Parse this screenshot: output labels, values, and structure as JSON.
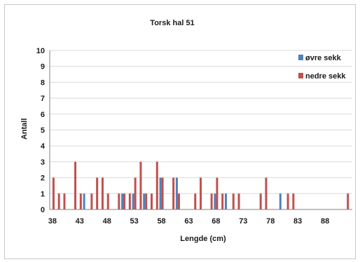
{
  "chart_data": {
    "type": "bar",
    "title": "Torsk hal 51",
    "xlabel": "Lengde (cm)",
    "ylabel": "Antall",
    "xlim": [
      37.5,
      93
    ],
    "ylim": [
      0,
      10
    ],
    "x_ticks": [
      38,
      43,
      48,
      53,
      58,
      63,
      68,
      73,
      78,
      83,
      88
    ],
    "y_ticks": [
      0,
      1,
      2,
      3,
      4,
      5,
      6,
      7,
      8,
      9,
      10
    ],
    "grid": "horizontal",
    "legend_position": "top-right",
    "series": [
      {
        "name": "øvre sekk",
        "color": "#4f81bd",
        "points": [
          {
            "x": 44,
            "y": 1
          },
          {
            "x": 51,
            "y": 1
          },
          {
            "x": 53,
            "y": 1
          },
          {
            "x": 55,
            "y": 1
          },
          {
            "x": 58,
            "y": 2
          },
          {
            "x": 61,
            "y": 2
          },
          {
            "x": 68,
            "y": 1
          },
          {
            "x": 70,
            "y": 1
          },
          {
            "x": 80,
            "y": 1
          }
        ]
      },
      {
        "name": "nedre sekk",
        "color": "#c0504d",
        "points": [
          {
            "x": 38,
            "y": 2
          },
          {
            "x": 39,
            "y": 1
          },
          {
            "x": 40,
            "y": 1
          },
          {
            "x": 42,
            "y": 3
          },
          {
            "x": 43,
            "y": 1
          },
          {
            "x": 45,
            "y": 1
          },
          {
            "x": 46,
            "y": 2
          },
          {
            "x": 47,
            "y": 2
          },
          {
            "x": 48,
            "y": 1
          },
          {
            "x": 50,
            "y": 1
          },
          {
            "x": 51,
            "y": 1
          },
          {
            "x": 52,
            "y": 1
          },
          {
            "x": 53,
            "y": 2
          },
          {
            "x": 54,
            "y": 3
          },
          {
            "x": 55,
            "y": 1
          },
          {
            "x": 56,
            "y": 1
          },
          {
            "x": 57,
            "y": 3
          },
          {
            "x": 58,
            "y": 2
          },
          {
            "x": 60,
            "y": 2
          },
          {
            "x": 61,
            "y": 1
          },
          {
            "x": 64,
            "y": 1
          },
          {
            "x": 65,
            "y": 2
          },
          {
            "x": 67,
            "y": 1
          },
          {
            "x": 68,
            "y": 2
          },
          {
            "x": 69,
            "y": 1
          },
          {
            "x": 71,
            "y": 1
          },
          {
            "x": 72,
            "y": 1
          },
          {
            "x": 76,
            "y": 1
          },
          {
            "x": 77,
            "y": 2
          },
          {
            "x": 81,
            "y": 1
          },
          {
            "x": 82,
            "y": 1
          },
          {
            "x": 92,
            "y": 1
          }
        ]
      }
    ]
  }
}
